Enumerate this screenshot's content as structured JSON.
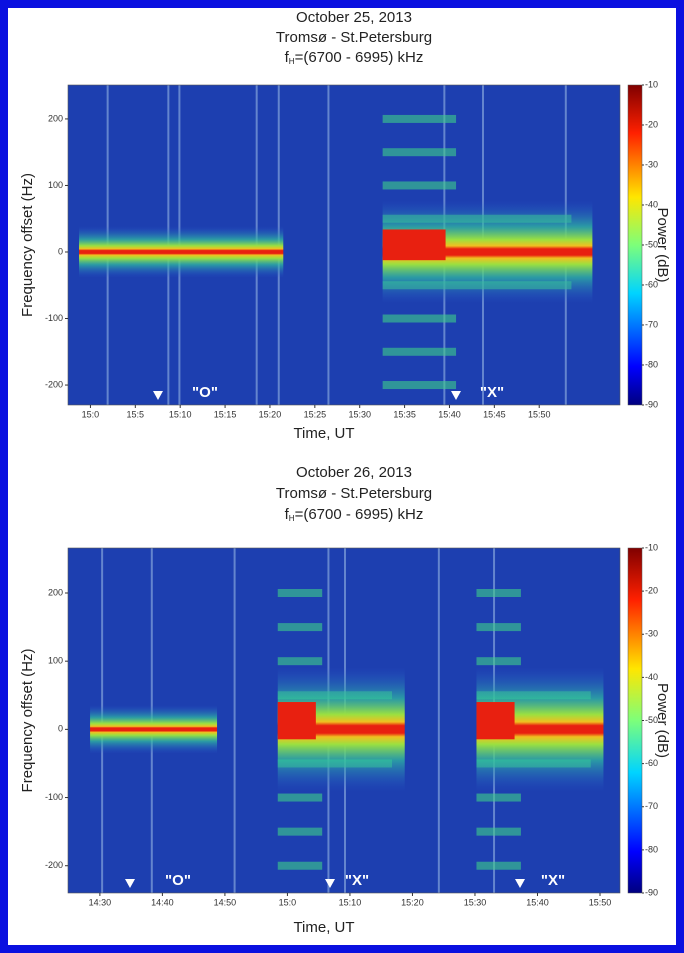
{
  "chart_data": [
    {
      "type": "spectrogram",
      "title": "October 25, 2013",
      "subtitle": "Tromsø - St.Petersburg",
      "frequency_label": {
        "symbol": "f",
        "subscript": "H",
        "text": "=(6700 - 6995) kHz"
      },
      "xlabel": "Time, UT",
      "ylabel": "Frequency offset (Hz)",
      "colorbar_label": "Power (dB)",
      "xlim": [
        897.5,
        959
      ],
      "ylim": [
        -230,
        251
      ],
      "xticks": [
        {
          "value": 900,
          "label": "15:0"
        },
        {
          "value": 905,
          "label": "15:5"
        },
        {
          "value": 910,
          "label": "15:10"
        },
        {
          "value": 915,
          "label": "15:15"
        },
        {
          "value": 920,
          "label": "15:20"
        },
        {
          "value": 925,
          "label": "15:25"
        },
        {
          "value": 930,
          "label": "15:30"
        },
        {
          "value": 935,
          "label": "15:35"
        },
        {
          "value": 940,
          "label": "15:40"
        },
        {
          "value": 945,
          "label": "15:45"
        },
        {
          "value": 950,
          "label": "15:50"
        }
      ],
      "yticks": [
        -200,
        -100,
        0,
        100,
        200
      ],
      "clim": [
        -90,
        -10
      ],
      "cticks": [
        -90,
        -80,
        -70,
        -60,
        -50,
        -40,
        -30,
        -20,
        -10
      ],
      "annotations": [
        "\"O\"",
        "\"X\""
      ]
    },
    {
      "type": "spectrogram",
      "title": "October 26, 2013",
      "subtitle": "Tromsø - St.Petersburg",
      "frequency_label": {
        "symbol": "f",
        "subscript": "H",
        "text": "=(6700 - 6995) kHz"
      },
      "xlabel": "Time, UT",
      "ylabel": "Frequency offset (Hz)",
      "colorbar_label": "Power (dB)",
      "xlim": [
        864.9,
        953.2
      ],
      "ylim": [
        -240,
        266
      ],
      "xticks": [
        {
          "value": 870,
          "label": "14:30"
        },
        {
          "value": 880,
          "label": "14:40"
        },
        {
          "value": 890,
          "label": "14:50"
        },
        {
          "value": 900,
          "label": "15:0"
        },
        {
          "value": 910,
          "label": "15:10"
        },
        {
          "value": 920,
          "label": "15:20"
        },
        {
          "value": 930,
          "label": "15:30"
        },
        {
          "value": 940,
          "label": "15:40"
        },
        {
          "value": 950,
          "label": "15:50"
        }
      ],
      "yticks": [
        -200,
        -100,
        0,
        100,
        200
      ],
      "clim": [
        -90,
        -10
      ],
      "cticks": [
        -90,
        -80,
        -70,
        -60,
        -50,
        -40,
        -30,
        -20,
        -10
      ],
      "annotations": [
        "\"O\"",
        "\"X\"",
        "\"X\""
      ]
    }
  ]
}
